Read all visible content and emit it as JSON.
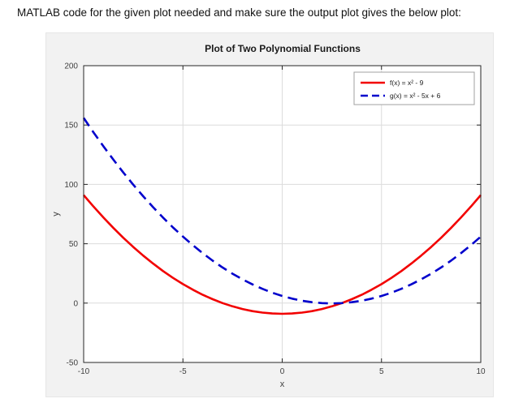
{
  "page": {
    "prompt_text": "MATLAB code for the given plot needed and make sure the output plot gives the below plot:"
  },
  "chart_data": {
    "type": "line",
    "title": "Plot of Two Polynomial Functions",
    "xlabel": "x",
    "ylabel": "y",
    "xlim": [
      -10,
      10
    ],
    "ylim": [
      -50,
      200
    ],
    "xticks": [
      -10,
      -5,
      0,
      5,
      10
    ],
    "yticks": [
      -50,
      0,
      50,
      100,
      150,
      200
    ],
    "grid": true,
    "legend_position": "top-right",
    "grid_color": "#dcdcdc",
    "axis_color": "#262626",
    "tick_color": "#404040",
    "x": [
      -10,
      -9.5,
      -9,
      -8.5,
      -8,
      -7.5,
      -7,
      -6.5,
      -6,
      -5.5,
      -5,
      -4.5,
      -4,
      -3.5,
      -3,
      -2.5,
      -2,
      -1.5,
      -1,
      -0.5,
      0,
      0.5,
      1,
      1.5,
      2,
      2.5,
      3,
      3.5,
      4,
      4.5,
      5,
      5.5,
      6,
      6.5,
      7,
      7.5,
      8,
      8.5,
      9,
      9.5,
      10
    ],
    "series": [
      {
        "name": "f(x) = x² - 9",
        "color": "#f20000",
        "style": "solid",
        "values": [
          91,
          81.25,
          72,
          63.25,
          55,
          47.25,
          40,
          33.25,
          27,
          21.25,
          16,
          11.25,
          7,
          3.25,
          0,
          -2.75,
          -5,
          -6.75,
          -8,
          -8.75,
          -9,
          -8.75,
          -8,
          -6.75,
          -5,
          -2.75,
          0,
          3.25,
          7,
          11.25,
          16,
          21.25,
          27,
          33.25,
          40,
          47.25,
          55,
          63.25,
          72,
          81.25,
          91
        ]
      },
      {
        "name": "g(x) = x² - 5x + 6",
        "color": "#0000cc",
        "style": "dashed",
        "values": [
          156,
          143.75,
          132,
          120.75,
          110,
          99.75,
          90,
          80.75,
          72,
          63.75,
          56,
          48.75,
          42,
          35.75,
          30,
          24.75,
          20,
          15.75,
          12,
          8.75,
          6,
          3.75,
          2,
          0.75,
          0,
          -0.25,
          0,
          0.75,
          2,
          3.75,
          6,
          8.75,
          12,
          15.75,
          20,
          24.75,
          30,
          35.75,
          42,
          48.75,
          56
        ]
      }
    ]
  }
}
